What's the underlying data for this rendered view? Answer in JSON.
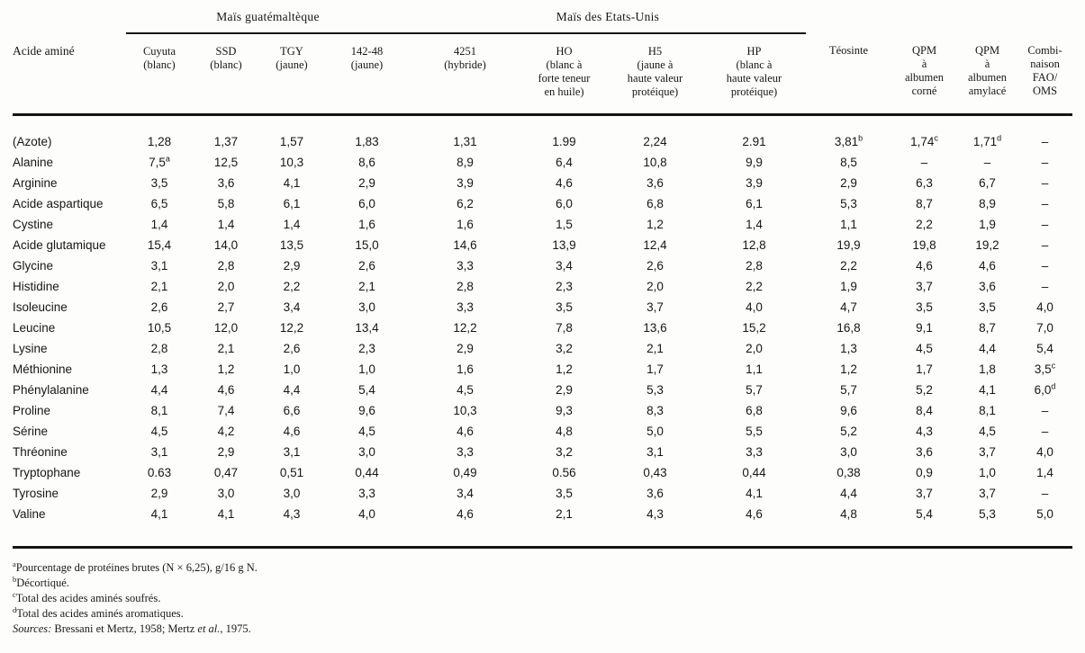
{
  "document": {
    "table": {
      "row_header": "Acide aminé",
      "groups": [
        {
          "label": "Maïs guatémaltèque"
        },
        {
          "label": "Maïs des Etats-Unis"
        }
      ],
      "columns": [
        "Cuyuta\n(blanc)",
        "SSD\n(blanc)",
        "TGY\n(jaune)",
        "142-48\n(jaune)",
        "4251\n(hybride)",
        "HO\n(blanc à\nforte teneur\nen huile)",
        "H5\n(jaune à\nhaute valeur\nprotéique)",
        "HP\n(blanc à\nhaute valeur\nprotéique)",
        "Téosinte",
        "QPM\nà\nalbumen\ncorné",
        "QPM\nà\nalbumen\namylacé",
        "Combi-\nnaison\nFAO/\nOMS"
      ],
      "rows": [
        {
          "label": "(Azote)",
          "values": [
            "1,28",
            "1,37",
            "1,57",
            "1,83",
            "1,31",
            "1.99",
            "2,24",
            "2.91",
            "3,81^b",
            "1,74^c",
            "1,71^d",
            "–"
          ]
        },
        {
          "label": "Alanine",
          "values": [
            "7,5^a",
            "12,5",
            "10,3",
            "8,6",
            "8,9",
            "6,4",
            "10,8",
            "9,9",
            "8,5",
            "–",
            "–",
            "–"
          ]
        },
        {
          "label": "Arginine",
          "values": [
            "3,5",
            "3,6",
            "4,1",
            "2,9",
            "3,9",
            "4,6",
            "3,6",
            "3,9",
            "2,9",
            "6,3",
            "6,7",
            "–"
          ]
        },
        {
          "label": "Acide aspartique",
          "values": [
            "6,5",
            "5,8",
            "6,1",
            "6,0",
            "6,2",
            "6,0",
            "6,8",
            "6,1",
            "5,3",
            "8,7",
            "8,9",
            "–"
          ]
        },
        {
          "label": "Cystine",
          "values": [
            "1,4",
            "1,4",
            "1,4",
            "1,6",
            "1,6",
            "1,5",
            "1,2",
            "1,4",
            "1,1",
            "2,2",
            "1,9",
            "–"
          ]
        },
        {
          "label": "Acide glutamique",
          "values": [
            "15,4",
            "14,0",
            "13,5",
            "15,0",
            "14,6",
            "13,9",
            "12,4",
            "12,8",
            "19,9",
            "19,8",
            "19,2",
            "–"
          ]
        },
        {
          "label": "Glycine",
          "values": [
            "3,1",
            "2,8",
            "2,9",
            "2,6",
            "3,3",
            "3,4",
            "2,6",
            "2,8",
            "2,2",
            "4,6",
            "4,6",
            "–"
          ]
        },
        {
          "label": "Histidine",
          "values": [
            "2,1",
            "2,0",
            "2,2",
            "2,1",
            "2,8",
            "2,3",
            "2,0",
            "2,2",
            "1,9",
            "3,7",
            "3,6",
            "–"
          ]
        },
        {
          "label": "Isoleucine",
          "values": [
            "2,6",
            "2,7",
            "3,4",
            "3,0",
            "3,3",
            "3,5",
            "3,7",
            "4,0",
            "4,7",
            "3,5",
            "3,5",
            "4,0"
          ]
        },
        {
          "label": "Leucine",
          "values": [
            "10,5",
            "12,0",
            "12,2",
            "13,4",
            "12,2",
            "7,8",
            "13,6",
            "15,2",
            "16,8",
            "9,1",
            "8,7",
            "7,0"
          ]
        },
        {
          "label": "Lysine",
          "values": [
            "2,8",
            "2,1",
            "2,6",
            "2,3",
            "2,9",
            "3,2",
            "2,1",
            "2,0",
            "1,3",
            "4,5",
            "4,4",
            "5,4"
          ]
        },
        {
          "label": "Méthionine",
          "values": [
            "1,3",
            "1,2",
            "1,0",
            "1,0",
            "1,6",
            "1,2",
            "1,7",
            "1,1",
            "1,2",
            "1,7",
            "1,8",
            "3,5^c"
          ]
        },
        {
          "label": "Phénylalanine",
          "values": [
            "4,4",
            "4,6",
            "4,4",
            "5,4",
            "4,5",
            "2,9",
            "5,3",
            "5,7",
            "5,7",
            "5,2",
            "4,1",
            "6,0^d"
          ]
        },
        {
          "label": "Proline",
          "values": [
            "8,1",
            "7,4",
            "6,6",
            "9,6",
            "10,3",
            "9,3",
            "8,3",
            "6,8",
            "9,6",
            "8,4",
            "8,1",
            "–"
          ]
        },
        {
          "label": "Sérine",
          "values": [
            "4,5",
            "4,2",
            "4,6",
            "4,5",
            "4,6",
            "4,8",
            "5,0",
            "5,5",
            "5,2",
            "4,3",
            "4,5",
            "–"
          ]
        },
        {
          "label": "Thréonine",
          "values": [
            "3,1",
            "2,9",
            "3,1",
            "3,0",
            "3,3",
            "3,2",
            "3,1",
            "3,3",
            "3,0",
            "3,6",
            "3,7",
            "4,0"
          ]
        },
        {
          "label": "Tryptophane",
          "values": [
            "0.63",
            "0,47",
            "0,51",
            "0,44",
            "0,49",
            "0.56",
            "0,43",
            "0,44",
            "0,38",
            "0,9",
            "1,0",
            "1,4"
          ]
        },
        {
          "label": "Tyrosine",
          "values": [
            "2,9",
            "3,0",
            "3,0",
            "3,3",
            "3,4",
            "3,5",
            "3,6",
            "4,1",
            "4,4",
            "3,7",
            "3,7",
            "–"
          ]
        },
        {
          "label": "Valine",
          "values": [
            "4,1",
            "4,1",
            "4,3",
            "4,0",
            "4,6",
            "2,1",
            "4,3",
            "4,6",
            "4,8",
            "5,4",
            "5,3",
            "5,0"
          ]
        }
      ]
    },
    "footnotes": [
      {
        "marker": "a",
        "text": "Pourcentage de protéines brutes (N × 6,25), g/16 g N."
      },
      {
        "marker": "b",
        "text": "Décortiqué."
      },
      {
        "marker": "c",
        "text": "Total des acides aminés soufrés."
      },
      {
        "marker": "d",
        "text": "Total des acides aminés aromatiques."
      }
    ],
    "sources": {
      "label": "Sources:",
      "part1": " Bressani et Mertz, 1958; Mertz ",
      "etal": "et al.",
      "part2": ", 1975."
    }
  }
}
